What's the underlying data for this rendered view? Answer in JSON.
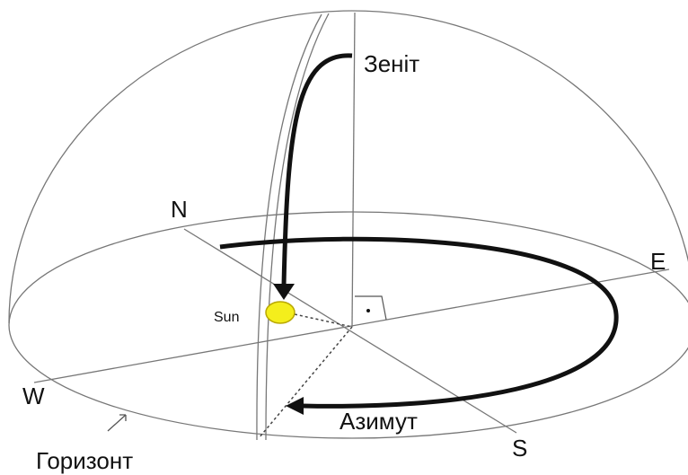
{
  "labels": {
    "zenith": "Зеніт",
    "north": "N",
    "east": "E",
    "west": "W",
    "south": "S",
    "sun": "Sun",
    "azimuth": "Азимут",
    "horizon": "Горизонт"
  }
}
